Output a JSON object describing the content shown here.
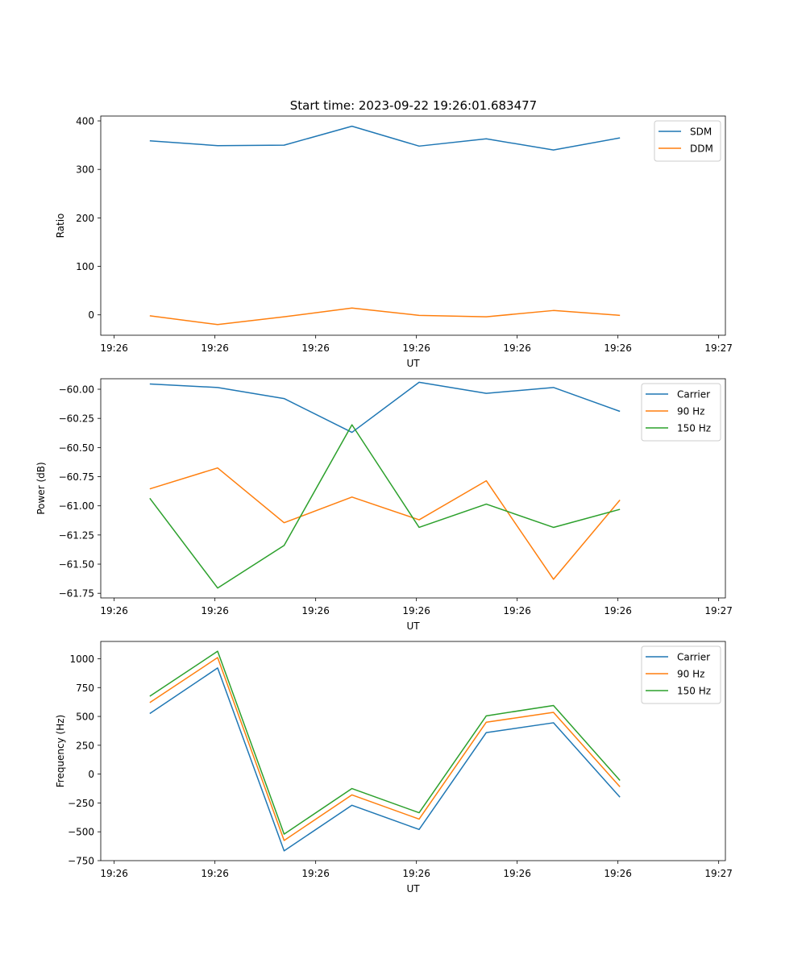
{
  "figure": {
    "title": "Start time: 2023-09-22 19:26:01.683477"
  },
  "colors": {
    "blue": "#1f77b4",
    "orange": "#ff7f0e",
    "green": "#2ca02c"
  },
  "chart_data": [
    {
      "type": "line",
      "title": "Start time: 2023-09-22 19:26:01.683477",
      "xlabel": "UT",
      "ylabel": "Ratio",
      "xlim": [
        -0.2,
        9.1
      ],
      "x": [
        0.53,
        1.54,
        2.53,
        3.54,
        4.54,
        5.54,
        6.54,
        7.53
      ],
      "xticks": [
        0,
        1.5,
        3,
        4.5,
        6,
        7.5,
        9
      ],
      "xticklabels": [
        "19:26",
        "19:26",
        "19:26",
        "19:26",
        "19:26",
        "19:26",
        "19:26"
      ],
      "xticklabel_end": "19:27",
      "ylim": [
        -42,
        410
      ],
      "yticks": [
        0,
        100,
        200,
        300,
        400
      ],
      "yticklabels": [
        "0",
        "100",
        "200",
        "300",
        "400"
      ],
      "legend": "top-right",
      "series": [
        {
          "name": "SDM",
          "color": "#1f77b4",
          "values": [
            359,
            349,
            350,
            389,
            348,
            363,
            340,
            365
          ]
        },
        {
          "name": "DDM",
          "color": "#ff7f0e",
          "values": [
            -2,
            -20,
            -4,
            14,
            -1,
            -4,
            9,
            -1
          ]
        }
      ]
    },
    {
      "type": "line",
      "xlabel": "UT",
      "ylabel": "Power (dB)",
      "xlim": [
        -0.2,
        9.1
      ],
      "x": [
        0.53,
        1.54,
        2.53,
        3.54,
        4.54,
        5.54,
        6.54,
        7.53
      ],
      "xticks": [
        0,
        1.5,
        3,
        4.5,
        6,
        7.5,
        9
      ],
      "xticklabels": [
        "19:26",
        "19:26",
        "19:26",
        "19:26",
        "19:26",
        "19:26",
        "19:26"
      ],
      "xticklabel_end": "19:27",
      "ylim": [
        -61.79,
        -59.91
      ],
      "yticks": [
        -60.0,
        -60.25,
        -60.5,
        -60.75,
        -61.0,
        -61.25,
        -61.5,
        -61.75
      ],
      "yticklabels": [
        "−60.00",
        "−60.25",
        "−60.50",
        "−60.75",
        "−61.00",
        "−61.25",
        "−61.50",
        "−61.75"
      ],
      "legend": "top-right",
      "series": [
        {
          "name": "Carrier",
          "color": "#1f77b4",
          "values": [
            -59.955,
            -59.985,
            -60.08,
            -60.37,
            -59.94,
            -60.035,
            -59.985,
            -60.19
          ]
        },
        {
          "name": "90 Hz",
          "color": "#ff7f0e",
          "values": [
            -60.855,
            -60.675,
            -61.145,
            -60.925,
            -61.12,
            -60.785,
            -61.63,
            -60.95
          ]
        },
        {
          "name": "150 Hz",
          "color": "#2ca02c",
          "values": [
            -60.935,
            -61.705,
            -61.34,
            -60.305,
            -61.185,
            -60.985,
            -61.185,
            -61.03
          ]
        }
      ]
    },
    {
      "type": "line",
      "xlabel": "UT",
      "ylabel": "Frequency (Hz)",
      "xlim": [
        -0.2,
        9.1
      ],
      "x": [
        0.53,
        1.54,
        2.53,
        3.54,
        4.54,
        5.54,
        6.54,
        7.53
      ],
      "xticks": [
        0,
        1.5,
        3,
        4.5,
        6,
        7.5,
        9
      ],
      "xticklabels": [
        "19:26",
        "19:26",
        "19:26",
        "19:26",
        "19:26",
        "19:26",
        "19:26"
      ],
      "xticklabel_end": "19:27",
      "ylim": [
        -750,
        1150
      ],
      "yticks": [
        1000,
        750,
        500,
        250,
        0,
        -250,
        -500,
        -750
      ],
      "yticklabels": [
        "1000",
        "750",
        "500",
        "250",
        "0",
        "−250",
        "−500",
        "−750"
      ],
      "legend": "top-right",
      "series": [
        {
          "name": "Carrier",
          "color": "#1f77b4",
          "values": [
            525,
            920,
            -665,
            -270,
            -480,
            360,
            445,
            -200
          ]
        },
        {
          "name": "90 Hz",
          "color": "#ff7f0e",
          "values": [
            620,
            1010,
            -575,
            -180,
            -390,
            450,
            535,
            -110
          ]
        },
        {
          "name": "150 Hz",
          "color": "#2ca02c",
          "values": [
            675,
            1065,
            -520,
            -125,
            -335,
            505,
            595,
            -55
          ]
        }
      ]
    }
  ]
}
